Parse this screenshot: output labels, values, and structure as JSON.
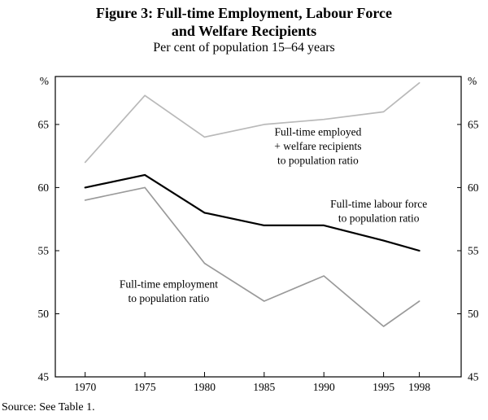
{
  "figure": {
    "title_line1": "Figure 3: Full-time Employment, Labour Force",
    "title_line2": "and Welfare Recipients",
    "subtitle": "Per cent of population 15–64 years",
    "source": "Source: See Table 1."
  },
  "chart_data": {
    "type": "line",
    "title": "Figure 3: Full-time Employment, Labour Force and Welfare Recipients",
    "subtitle": "Per cent of population 15–64 years",
    "x": [
      1970,
      1975,
      1980,
      1985,
      1990,
      1995,
      1998
    ],
    "x_tick_labels": [
      "1970",
      "1975",
      "1980",
      "1985",
      "1990",
      "1995",
      "1998"
    ],
    "y_ticks": [
      45,
      50,
      55,
      60,
      65
    ],
    "ylim": [
      45,
      68.8
    ],
    "xlim": [
      1967.5,
      2001.5
    ],
    "unit_label": "%",
    "grid": false,
    "legend": "inline-annotations",
    "series": [
      {
        "name": "Full-time employed + welfare recipients to population ratio",
        "color": "#b9b9b9",
        "width": 1.7,
        "values": [
          62,
          67.3,
          64,
          65,
          65.4,
          66,
          68.3
        ]
      },
      {
        "name": "Full-time employment to population ratio",
        "color": "#9a9a9a",
        "width": 1.7,
        "values": [
          59,
          60,
          54,
          51,
          53,
          49,
          51
        ]
      },
      {
        "name": "Full-time labour force to population ratio",
        "color": "#000000",
        "width": 2.2,
        "values": [
          60,
          61,
          58,
          57,
          57,
          55.8,
          55
        ]
      }
    ],
    "annotations": [
      {
        "lines": [
          "Full-time employed",
          "+ welfare recipients",
          "to population ratio"
        ],
        "x": 1989.5,
        "y": 63.3
      },
      {
        "lines": [
          "Full-time labour force",
          "to population ratio"
        ],
        "x": 1994.6,
        "y": 58.15
      },
      {
        "lines": [
          "Full-time employment",
          "to population ratio"
        ],
        "x": 1977,
        "y": 51.8
      }
    ]
  }
}
